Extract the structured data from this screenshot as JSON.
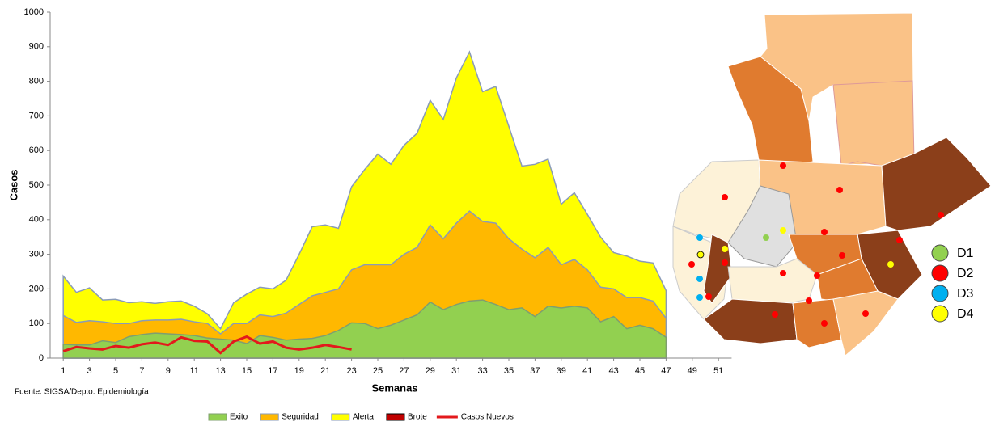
{
  "chart_data": {
    "type": "area",
    "y_label": "Casos",
    "x_label": "Semanas",
    "source": "Fuente: SIGSA/Depto. Epidemiología",
    "x": [
      1,
      2,
      3,
      4,
      5,
      6,
      7,
      8,
      9,
      10,
      11,
      12,
      13,
      14,
      15,
      16,
      17,
      18,
      19,
      20,
      21,
      22,
      23,
      24,
      25,
      26,
      27,
      28,
      29,
      30,
      31,
      32,
      33,
      34,
      35,
      36,
      37,
      38,
      39,
      40,
      41,
      42,
      43,
      44,
      45,
      46,
      47
    ],
    "xlim": [
      0,
      52
    ],
    "xticks": [
      1,
      3,
      5,
      7,
      9,
      11,
      13,
      15,
      17,
      19,
      21,
      23,
      25,
      27,
      29,
      31,
      33,
      35,
      37,
      39,
      41,
      43,
      45,
      47,
      49,
      51
    ],
    "ylim": [
      0,
      1000
    ],
    "yticks": [
      0,
      100,
      200,
      300,
      400,
      500,
      600,
      700,
      800,
      900,
      1000
    ],
    "legend": "bottom",
    "series": [
      {
        "name": "Exito",
        "color": "#92d050",
        "stroke": "#7f9f6f",
        "values": [
          40,
          38,
          38,
          50,
          45,
          62,
          68,
          72,
          70,
          68,
          65,
          58,
          55,
          52,
          42,
          65,
          60,
          52,
          55,
          57,
          65,
          80,
          102,
          100,
          85,
          95,
          110,
          125,
          162,
          140,
          155,
          165,
          168,
          155,
          140,
          145,
          120,
          150,
          145,
          150,
          145,
          105,
          120,
          85,
          95,
          85,
          60
        ]
      },
      {
        "name": "Seguridad",
        "color": "#ffb800",
        "stroke": "#8a9bb8",
        "values": [
          123,
          103,
          108,
          105,
          100,
          100,
          108,
          110,
          110,
          112,
          105,
          100,
          70,
          100,
          100,
          125,
          120,
          130,
          155,
          180,
          190,
          200,
          255,
          270,
          270,
          270,
          300,
          320,
          385,
          345,
          390,
          425,
          395,
          390,
          345,
          315,
          290,
          320,
          270,
          285,
          255,
          205,
          200,
          175,
          175,
          165,
          115
        ]
      },
      {
        "name": "Alerta",
        "color": "#ffff00",
        "stroke": "#8a9bb8",
        "values": [
          237,
          190,
          203,
          168,
          170,
          160,
          163,
          158,
          163,
          165,
          150,
          128,
          85,
          160,
          185,
          205,
          200,
          225,
          300,
          380,
          385,
          375,
          495,
          545,
          590,
          560,
          615,
          650,
          745,
          690,
          810,
          885,
          770,
          785,
          670,
          555,
          560,
          575,
          445,
          478,
          415,
          350,
          305,
          295,
          280,
          275,
          195
        ]
      },
      {
        "name": "Brote",
        "color": "#c00000",
        "stroke": "#000000",
        "values": [
          null,
          null,
          null,
          null,
          null,
          null,
          null,
          null,
          null,
          null,
          null,
          null,
          null,
          null,
          null,
          null,
          null,
          null,
          null,
          null,
          null,
          null,
          null,
          null,
          null,
          null,
          null,
          null,
          null,
          null,
          null,
          null,
          null,
          null,
          null,
          null,
          null,
          null,
          null,
          null,
          null,
          null,
          null,
          null,
          null,
          null,
          null
        ]
      },
      {
        "name": "Casos Nuevos",
        "type": "line",
        "color": "#e3191c",
        "values": [
          20,
          32,
          28,
          25,
          35,
          30,
          40,
          45,
          38,
          60,
          50,
          48,
          15,
          48,
          62,
          42,
          48,
          30,
          25,
          30,
          38,
          32,
          25,
          null,
          null,
          null,
          null,
          null,
          null,
          null,
          null,
          null,
          null,
          null,
          null,
          null,
          null,
          null,
          null,
          null,
          null,
          null,
          null,
          null,
          null,
          null,
          null
        ]
      }
    ]
  },
  "map": {
    "legend": [
      {
        "label": "D1",
        "color": "#92d050"
      },
      {
        "label": "D2",
        "color": "#ff0000"
      },
      {
        "label": "D3",
        "color": "#00b0f0"
      },
      {
        "label": "D4",
        "color": "#ffff00"
      }
    ]
  }
}
